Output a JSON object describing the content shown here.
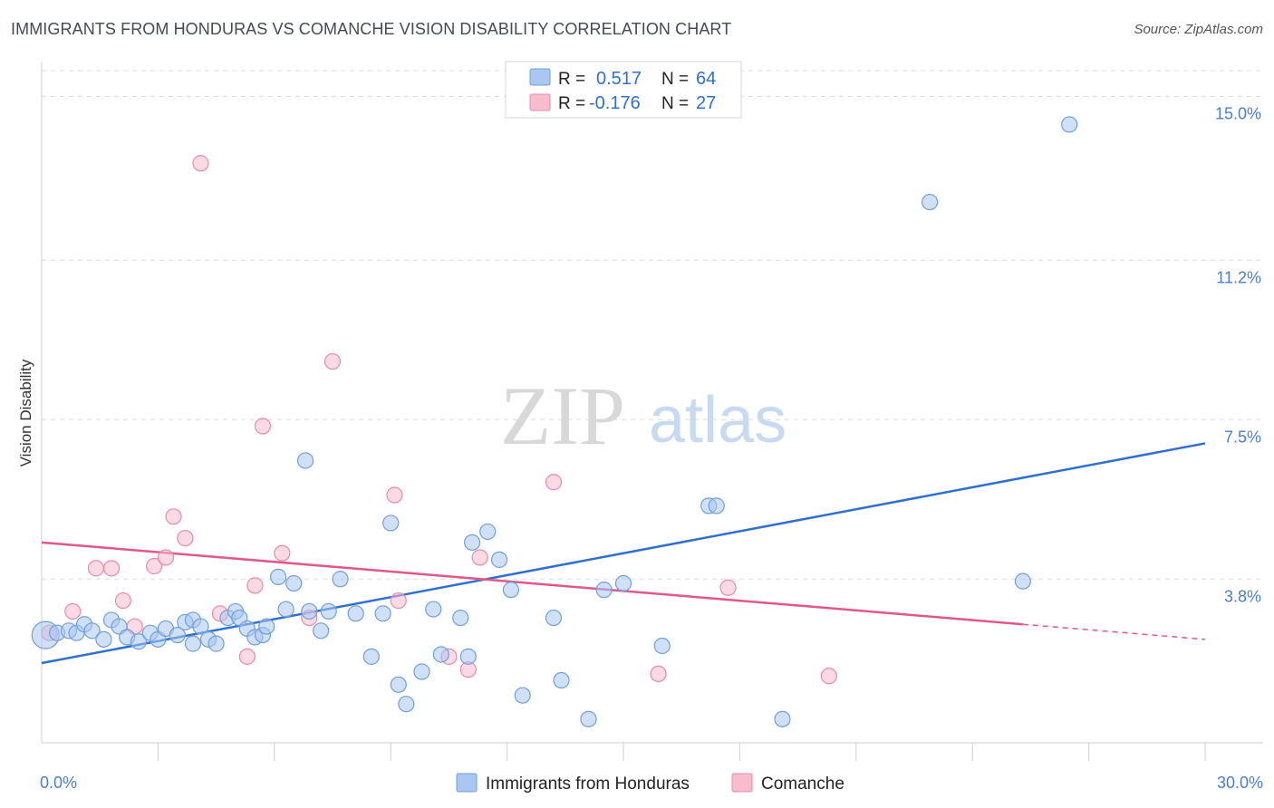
{
  "header": {
    "title": "IMMIGRANTS FROM HONDURAS VS COMANCHE VISION DISABILITY CORRELATION CHART",
    "source": "Source: ZipAtlas.com"
  },
  "watermark": {
    "zip": "ZIP",
    "atlas": "atlas"
  },
  "legend": {
    "rows": [
      {
        "r_label": "R =",
        "r_value": "0.517",
        "n_label": "N =",
        "n_value": "64"
      },
      {
        "r_label": "R =",
        "r_value": "-0.176",
        "n_label": "N =",
        "n_value": "27"
      }
    ]
  },
  "bottom_legend": {
    "items": [
      {
        "label": "Immigrants from Honduras"
      },
      {
        "label": "Comanche"
      }
    ]
  },
  "colors": {
    "blue_fill": "#a9c7f0",
    "blue_stroke": "#6f9fdc",
    "blue_line": "#2f6fd1",
    "pink_fill": "#f7bccd",
    "pink_stroke": "#e88aa8",
    "pink_line": "#e0578a",
    "grid": "#dcdcdc",
    "tick_text": "#4a7fd0"
  },
  "chart_data": {
    "type": "scatter",
    "title": "IMMIGRANTS FROM HONDURAS VS COMANCHE VISION DISABILITY CORRELATION CHART",
    "xlabel": "",
    "ylabel": "Vision Disability",
    "xlim": [
      0,
      30
    ],
    "ylim": [
      0,
      15.6
    ],
    "x_tick_labels": [
      "0.0%",
      "30.0%"
    ],
    "y_ticks": [
      3.8,
      7.5,
      11.2,
      15.0
    ],
    "y_tick_labels": [
      "3.8%",
      "7.5%",
      "11.2%",
      "15.0%"
    ],
    "grid": "horizontal dashed",
    "legend_position": "top-center",
    "series": [
      {
        "name": "Immigrants from Honduras",
        "color": "#a9c7f0",
        "trend": {
          "x": [
            0,
            30
          ],
          "y": [
            1.85,
            6.95
          ]
        },
        "points": [
          {
            "x": 0.1,
            "y": 2.5,
            "big": true
          },
          {
            "x": 0.4,
            "y": 2.55
          },
          {
            "x": 0.7,
            "y": 2.6
          },
          {
            "x": 0.9,
            "y": 2.55
          },
          {
            "x": 1.1,
            "y": 2.75
          },
          {
            "x": 1.3,
            "y": 2.6
          },
          {
            "x": 1.6,
            "y": 2.4
          },
          {
            "x": 1.8,
            "y": 2.85
          },
          {
            "x": 2.0,
            "y": 2.7
          },
          {
            "x": 2.2,
            "y": 2.45
          },
          {
            "x": 2.5,
            "y": 2.35
          },
          {
            "x": 2.8,
            "y": 2.55
          },
          {
            "x": 3.0,
            "y": 2.4
          },
          {
            "x": 3.2,
            "y": 2.65
          },
          {
            "x": 3.5,
            "y": 2.5
          },
          {
            "x": 3.7,
            "y": 2.8
          },
          {
            "x": 3.9,
            "y": 2.85
          },
          {
            "x": 4.1,
            "y": 2.7
          },
          {
            "x": 4.3,
            "y": 2.4
          },
          {
            "x": 4.5,
            "y": 2.3
          },
          {
            "x": 4.8,
            "y": 2.9
          },
          {
            "x": 5.0,
            "y": 3.05
          },
          {
            "x": 5.1,
            "y": 2.9
          },
          {
            "x": 5.3,
            "y": 2.65
          },
          {
            "x": 5.5,
            "y": 2.45
          },
          {
            "x": 5.7,
            "y": 2.5
          },
          {
            "x": 5.8,
            "y": 2.7
          },
          {
            "x": 6.1,
            "y": 3.85
          },
          {
            "x": 6.3,
            "y": 3.1
          },
          {
            "x": 6.5,
            "y": 3.7
          },
          {
            "x": 6.8,
            "y": 6.55
          },
          {
            "x": 6.9,
            "y": 3.05
          },
          {
            "x": 7.2,
            "y": 2.6
          },
          {
            "x": 7.4,
            "y": 3.05
          },
          {
            "x": 7.7,
            "y": 3.8
          },
          {
            "x": 8.1,
            "y": 3.0
          },
          {
            "x": 8.5,
            "y": 2.0
          },
          {
            "x": 8.8,
            "y": 3.0
          },
          {
            "x": 9.0,
            "y": 5.1
          },
          {
            "x": 9.2,
            "y": 1.35
          },
          {
            "x": 9.4,
            "y": 0.9
          },
          {
            "x": 9.8,
            "y": 1.65
          },
          {
            "x": 10.1,
            "y": 3.1
          },
          {
            "x": 10.3,
            "y": 2.05
          },
          {
            "x": 10.8,
            "y": 2.9
          },
          {
            "x": 11.1,
            "y": 4.65
          },
          {
            "x": 11.5,
            "y": 4.9
          },
          {
            "x": 11.8,
            "y": 4.25
          },
          {
            "x": 12.1,
            "y": 3.55
          },
          {
            "x": 12.4,
            "y": 1.1
          },
          {
            "x": 13.2,
            "y": 2.9
          },
          {
            "x": 13.4,
            "y": 1.45
          },
          {
            "x": 14.1,
            "y": 0.55
          },
          {
            "x": 14.5,
            "y": 3.55
          },
          {
            "x": 15.0,
            "y": 3.7
          },
          {
            "x": 16.0,
            "y": 2.25
          },
          {
            "x": 17.2,
            "y": 5.5
          },
          {
            "x": 17.4,
            "y": 5.5
          },
          {
            "x": 19.1,
            "y": 0.55
          },
          {
            "x": 22.9,
            "y": 12.55
          },
          {
            "x": 25.3,
            "y": 3.75
          },
          {
            "x": 26.5,
            "y": 14.35
          },
          {
            "x": 11.0,
            "y": 2.0
          },
          {
            "x": 3.9,
            "y": 2.3
          }
        ]
      },
      {
        "name": "Comanche",
        "color": "#f7bccd",
        "trend": {
          "x": [
            0,
            25.3
          ],
          "y": [
            4.65,
            2.75
          ],
          "dashed_to": {
            "x": 30,
            "y": 2.4
          }
        },
        "points": [
          {
            "x": 0.2,
            "y": 2.55
          },
          {
            "x": 0.8,
            "y": 3.05
          },
          {
            "x": 1.4,
            "y": 4.05
          },
          {
            "x": 1.8,
            "y": 4.05
          },
          {
            "x": 2.1,
            "y": 3.3
          },
          {
            "x": 2.4,
            "y": 2.7
          },
          {
            "x": 2.9,
            "y": 4.1
          },
          {
            "x": 3.2,
            "y": 4.3
          },
          {
            "x": 3.4,
            "y": 5.25
          },
          {
            "x": 3.7,
            "y": 4.75
          },
          {
            "x": 4.1,
            "y": 13.45
          },
          {
            "x": 4.6,
            "y": 3.0
          },
          {
            "x": 5.3,
            "y": 2.0
          },
          {
            "x": 5.5,
            "y": 3.65
          },
          {
            "x": 5.7,
            "y": 7.35
          },
          {
            "x": 6.2,
            "y": 4.4
          },
          {
            "x": 6.9,
            "y": 2.9
          },
          {
            "x": 7.5,
            "y": 8.85
          },
          {
            "x": 9.1,
            "y": 5.75
          },
          {
            "x": 9.2,
            "y": 3.3
          },
          {
            "x": 10.5,
            "y": 2.0
          },
          {
            "x": 11.0,
            "y": 1.7
          },
          {
            "x": 11.3,
            "y": 4.3
          },
          {
            "x": 13.2,
            "y": 6.05
          },
          {
            "x": 15.9,
            "y": 1.6
          },
          {
            "x": 17.7,
            "y": 3.6
          },
          {
            "x": 20.3,
            "y": 1.55
          }
        ]
      }
    ]
  }
}
